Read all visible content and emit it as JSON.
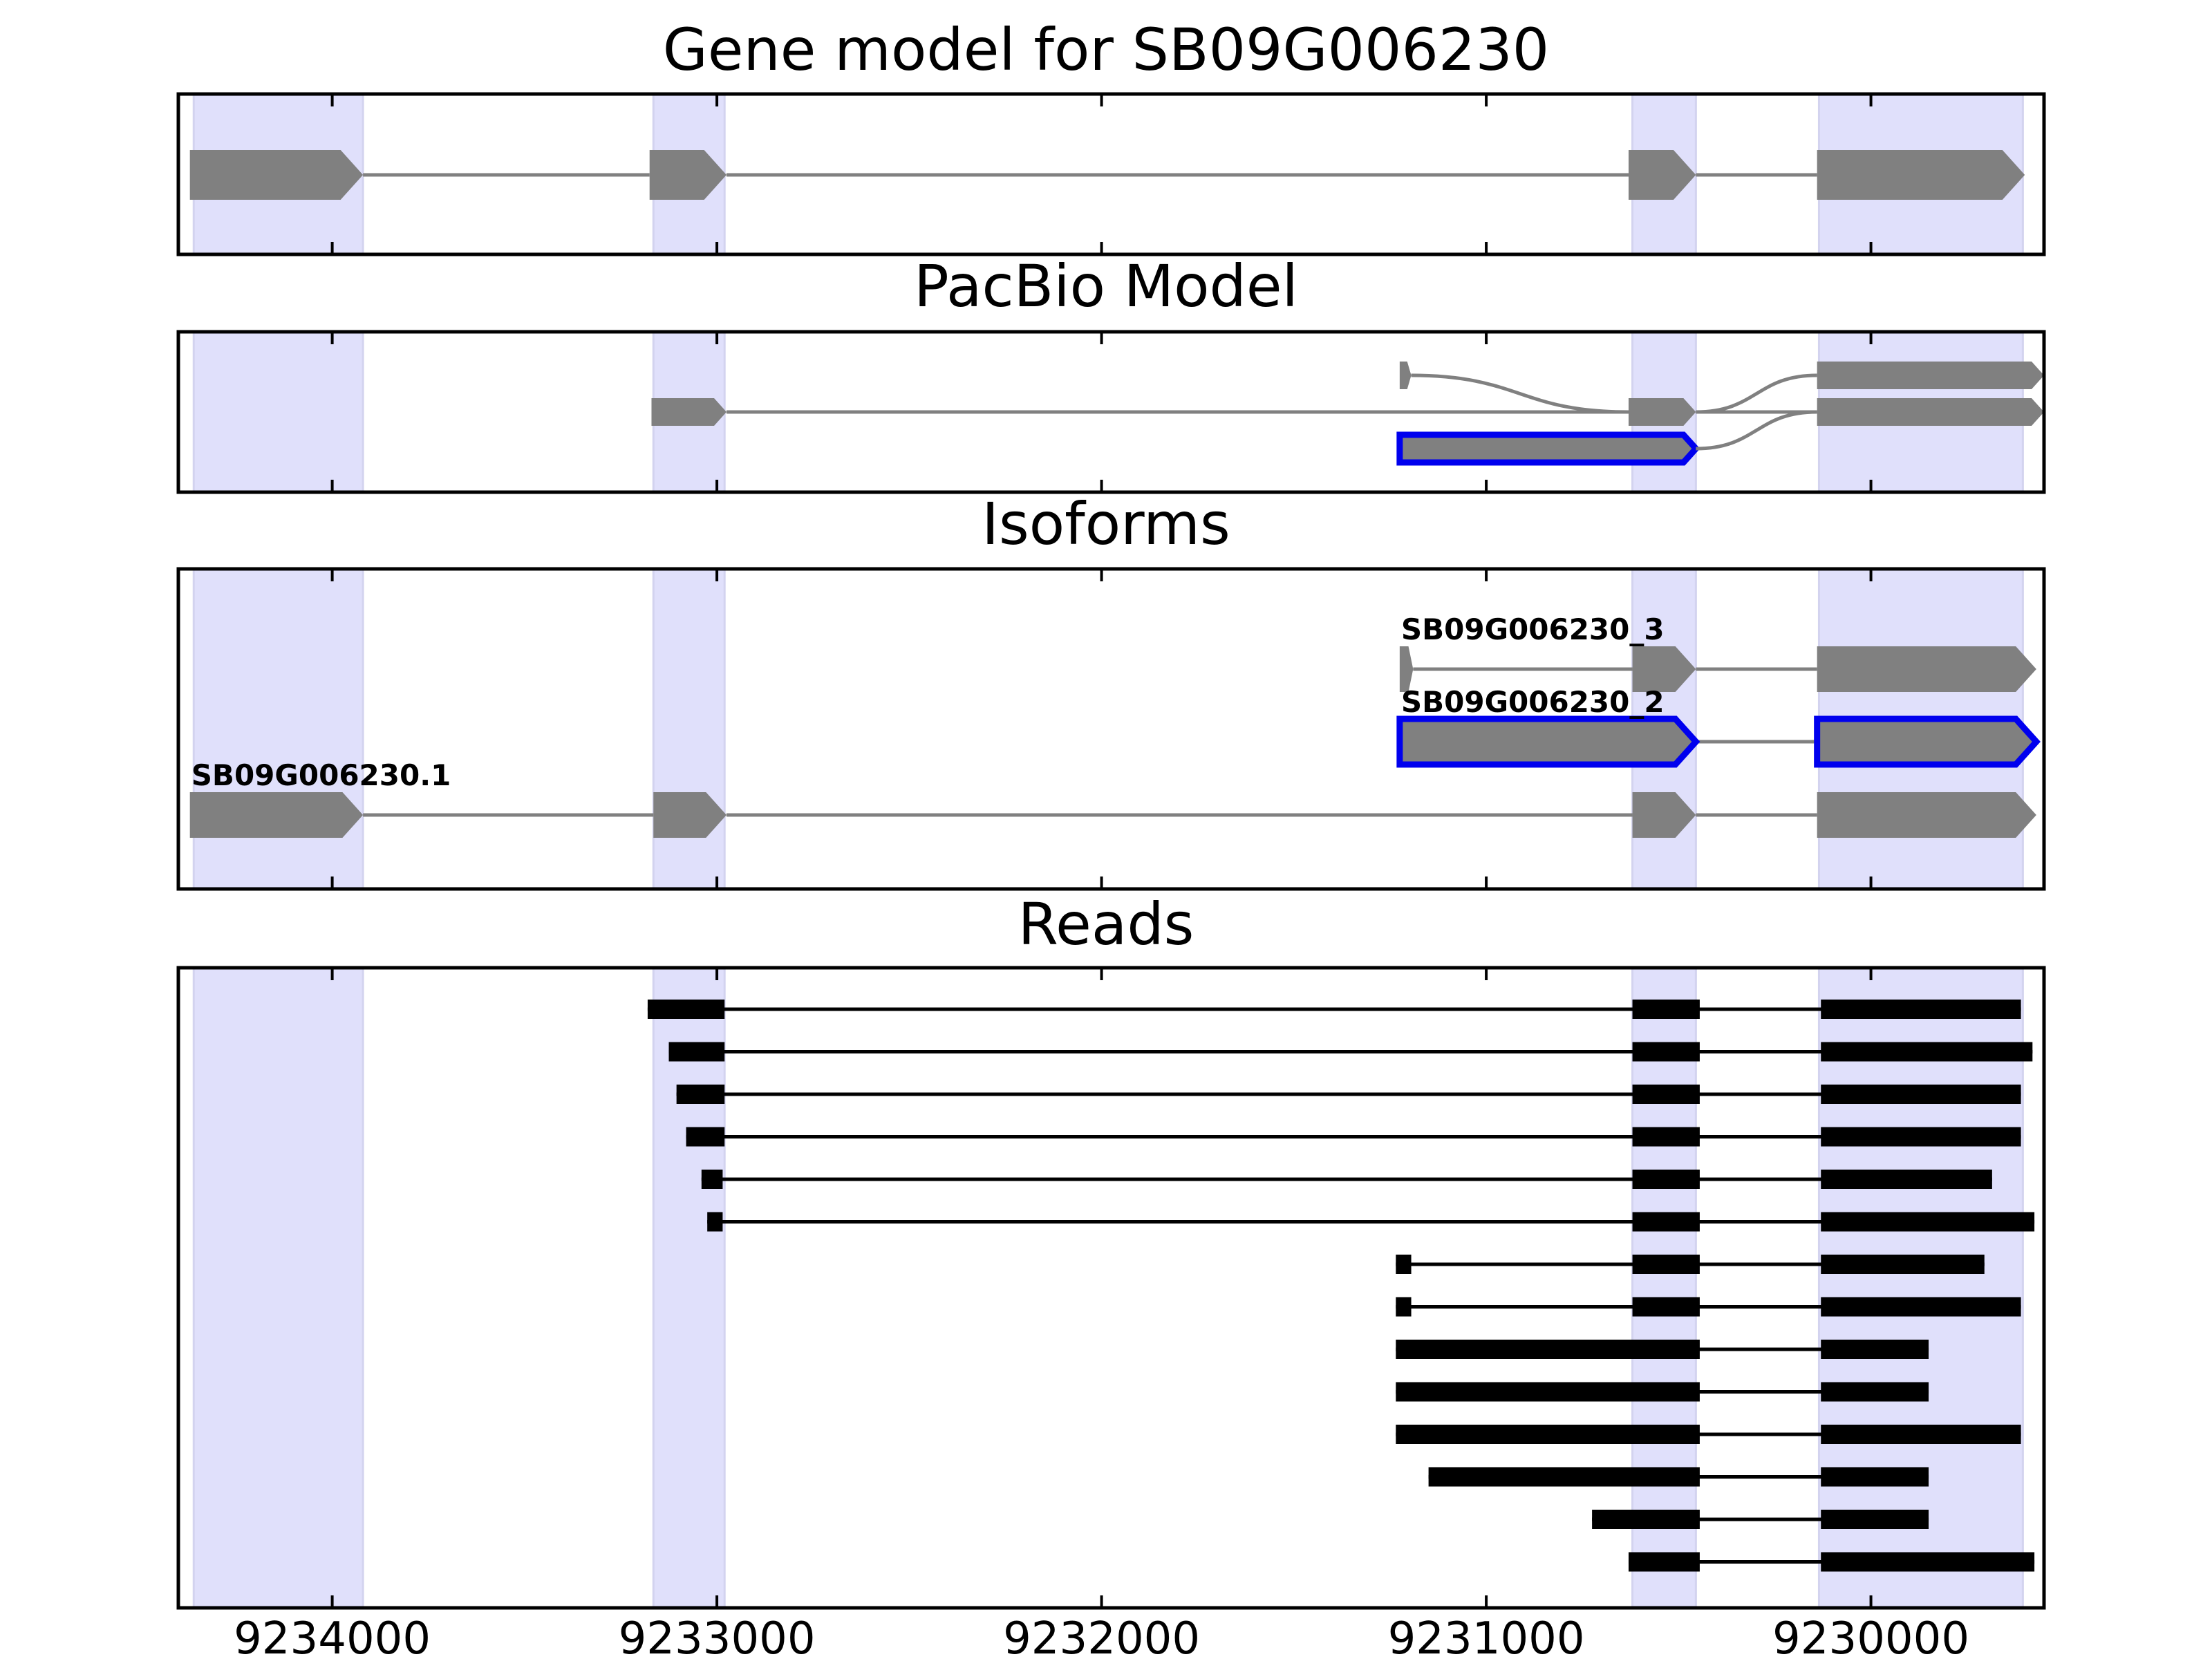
{
  "chart_data": {
    "type": "gene-track",
    "xaxis": {
      "reversed": true,
      "range": [
        9234400,
        9229550
      ],
      "ticks": [
        9234000,
        9233000,
        9232000,
        9231000,
        9230000
      ],
      "tick_labels": [
        "9234000",
        "9233000",
        "9232000",
        "9231000",
        "9230000"
      ]
    },
    "exon_highlight_color": "#e0e0fb",
    "highlights": [
      [
        9234360,
        9233920
      ],
      [
        9233165,
        9232980
      ],
      [
        9230620,
        9230455
      ],
      [
        9230135,
        9229605
      ]
    ],
    "panels": [
      {
        "key": "gene_model",
        "title": "Gene model for SB09G006230",
        "color": "#808080",
        "transcripts": [
          {
            "label": "",
            "outlined": false,
            "exons": [
              [
                9234370,
                9233920
              ],
              [
                9233175,
                9232975
              ],
              [
                9230630,
                9230455
              ],
              [
                9230140,
                9229600
              ]
            ]
          }
        ]
      },
      {
        "key": "pacbio",
        "title": "PacBio Model",
        "color": "#808080",
        "transcripts": [
          {
            "label": "",
            "outlined": false,
            "exons": [
              [
                9231225,
                9231195
              ],
              [
                9230140,
                9229550
              ]
            ],
            "curve_links": [
              [
                0,
                1
              ]
            ]
          },
          {
            "label": "",
            "outlined": false,
            "exons": [
              [
                9233170,
                9232975
              ],
              [
                9230630,
                9230455
              ],
              [
                9230140,
                9229550
              ]
            ],
            "curve_links": [
              [
                1,
                2
              ]
            ]
          },
          {
            "label": "",
            "outlined": true,
            "outline_color": "#0000ee",
            "exons": [
              [
                9231225,
                9230455
              ]
            ],
            "link_to_row": 1
          }
        ]
      },
      {
        "key": "isoforms",
        "title": "Isoforms",
        "color": "#808080",
        "transcripts": [
          {
            "label": "SB09G006230_3",
            "outlined": false,
            "exons": [
              [
                9231225,
                9231190
              ],
              [
                9230620,
                9230455
              ],
              [
                9230140,
                9229570
              ]
            ]
          },
          {
            "label": "SB09G006230_2",
            "outlined": true,
            "outline_color": "#0000ee",
            "exons": [
              [
                9231225,
                9230455
              ],
              [
                9230140,
                9229570
              ]
            ]
          },
          {
            "label": "SB09G006230.1",
            "outlined": false,
            "exons": [
              [
                9234370,
                9233920
              ],
              [
                9233165,
                9232975
              ],
              [
                9230620,
                9230455
              ],
              [
                9230140,
                9229570
              ]
            ]
          }
        ]
      },
      {
        "key": "reads",
        "title": "Reads",
        "color": "#000000",
        "reads": [
          [
            [
              9233180,
              9232980
            ],
            [
              9230620,
              9230445
            ],
            [
              9230130,
              9229610
            ]
          ],
          [
            [
              9233125,
              9232980
            ],
            [
              9230620,
              9230445
            ],
            [
              9230130,
              9229580
            ]
          ],
          [
            [
              9233105,
              9232980
            ],
            [
              9230620,
              9230445
            ],
            [
              9230130,
              9229610
            ]
          ],
          [
            [
              9233080,
              9232980
            ],
            [
              9230620,
              9230445
            ],
            [
              9230130,
              9229610
            ]
          ],
          [
            [
              9233040,
              9232985
            ],
            [
              9230620,
              9230445
            ],
            [
              9230130,
              9229685
            ]
          ],
          [
            [
              9233025,
              9232985
            ],
            [
              9230620,
              9230445
            ],
            [
              9230130,
              9229575
            ]
          ],
          [
            [
              9231235,
              9231195
            ],
            [
              9230620,
              9230445
            ],
            [
              9230130,
              9229705
            ]
          ],
          [
            [
              9231235,
              9231195
            ],
            [
              9230620,
              9230445
            ],
            [
              9230130,
              9229610
            ]
          ],
          [
            [
              9231235,
              9230445
            ],
            [
              9230130,
              9229850
            ]
          ],
          [
            [
              9231235,
              9230445
            ],
            [
              9230130,
              9229850
            ]
          ],
          [
            [
              9231235,
              9230445
            ],
            [
              9230130,
              9229610
            ]
          ],
          [
            [
              9231150,
              9230445
            ],
            [
              9230130,
              9229850
            ]
          ],
          [
            [
              9230725,
              9230445
            ],
            [
              9230130,
              9229850
            ]
          ],
          [
            [
              9230630,
              9230445
            ],
            [
              9230130,
              9229575
            ]
          ]
        ]
      }
    ]
  }
}
